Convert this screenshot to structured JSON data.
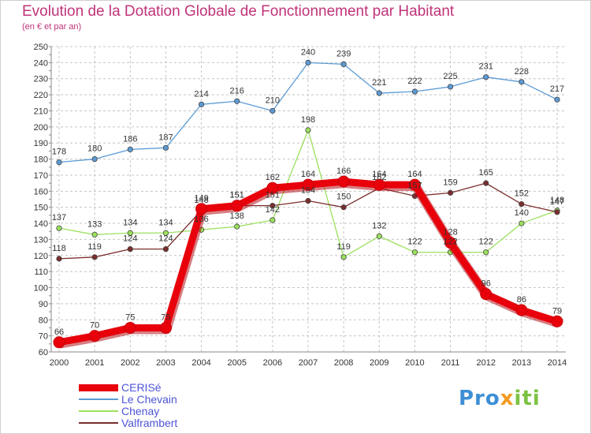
{
  "title": "Evolution de la Dotation Globale de Fonctionnement par Habitant",
  "subtitle": "(en € et par an)",
  "brand": {
    "part1": "Pro",
    "part2": "x",
    "part3": "iti"
  },
  "chart_data": {
    "type": "line",
    "title": "Evolution de la Dotation Globale de Fonctionnement par Habitant",
    "subtitle": "(en € et par an)",
    "x": [
      "2000",
      "2001",
      "2002",
      "2003",
      "2004",
      "2005",
      "2006",
      "2007",
      "2008",
      "2009",
      "2010",
      "2011",
      "2012",
      "2013",
      "2014"
    ],
    "ylim": [
      60,
      250
    ],
    "yticks": [
      60,
      70,
      80,
      90,
      100,
      110,
      120,
      130,
      140,
      150,
      160,
      170,
      180,
      190,
      200,
      210,
      220,
      230,
      240,
      250
    ],
    "grid": true,
    "legend_position": "bottom-left",
    "series": [
      {
        "name": "CERISé",
        "color": "#e8000b",
        "values": [
          66,
          70,
          75,
          75,
          149,
          151,
          162,
          164,
          166,
          164,
          164,
          128,
          96,
          86,
          79
        ]
      },
      {
        "name": "Le Chevain",
        "color": "#5b9bd5",
        "values": [
          178,
          180,
          186,
          187,
          214,
          216,
          210,
          240,
          239,
          221,
          222,
          225,
          231,
          228,
          217
        ]
      },
      {
        "name": "Chenay",
        "color": "#9be15d",
        "values": [
          137,
          133,
          134,
          134,
          136,
          138,
          142,
          198,
          119,
          132,
          122,
          122,
          122,
          140,
          148
        ]
      },
      {
        "name": "Valframbert",
        "color": "#7b2d2d",
        "values": [
          118,
          119,
          124,
          124,
          148,
          151,
          151,
          154,
          150,
          162,
          157,
          159,
          165,
          152,
          147
        ]
      }
    ]
  }
}
